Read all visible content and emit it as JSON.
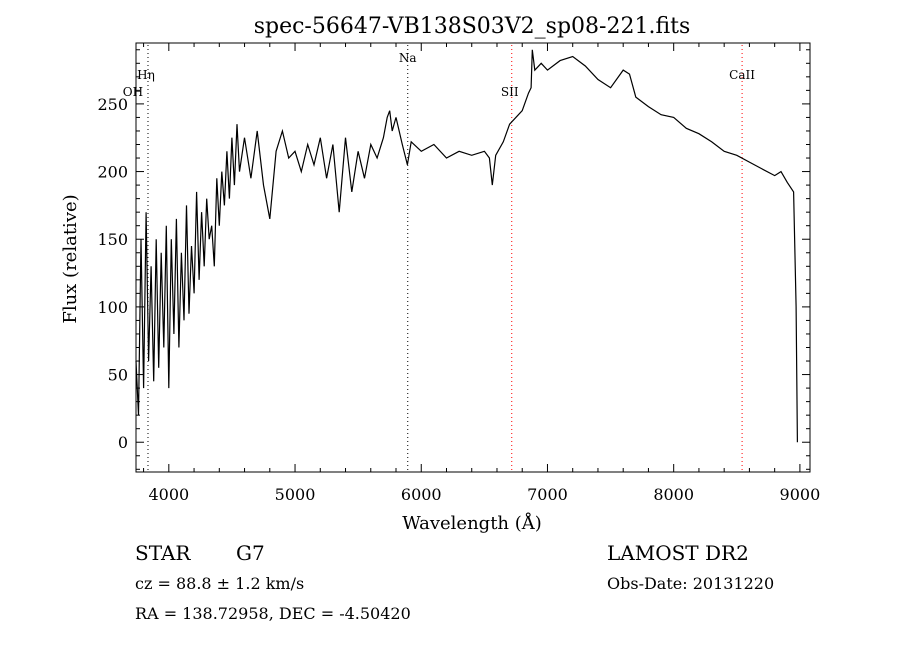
{
  "chart_data": {
    "type": "line",
    "title": "spec-56647-VB138S03V2_sp08-221.fits",
    "xlabel": "Wavelength (Å)",
    "ylabel": "Flux (relative)",
    "xlim": [
      3740,
      9080
    ],
    "ylim": [
      -22,
      295
    ],
    "xticks": [
      4000,
      5000,
      6000,
      7000,
      8000,
      9000
    ],
    "yticks": [
      0,
      50,
      100,
      150,
      200,
      250
    ],
    "grid": false,
    "line_color": "#000000",
    "marker_color": "#ff0000",
    "series": [
      {
        "values": [
          [
            3740,
            60
          ],
          [
            3760,
            20
          ],
          [
            3780,
            150
          ],
          [
            3800,
            40
          ],
          [
            3820,
            170
          ],
          [
            3840,
            60
          ],
          [
            3860,
            130
          ],
          [
            3880,
            45
          ],
          [
            3900,
            150
          ],
          [
            3920,
            55
          ],
          [
            3940,
            140
          ],
          [
            3960,
            70
          ],
          [
            3980,
            160
          ],
          [
            4000,
            40
          ],
          [
            4020,
            150
          ],
          [
            4040,
            80
          ],
          [
            4060,
            165
          ],
          [
            4080,
            70
          ],
          [
            4100,
            140
          ],
          [
            4120,
            90
          ],
          [
            4140,
            175
          ],
          [
            4160,
            95
          ],
          [
            4180,
            145
          ],
          [
            4200,
            110
          ],
          [
            4220,
            185
          ],
          [
            4240,
            120
          ],
          [
            4260,
            170
          ],
          [
            4280,
            130
          ],
          [
            4300,
            180
          ],
          [
            4320,
            150
          ],
          [
            4340,
            160
          ],
          [
            4360,
            130
          ],
          [
            4380,
            195
          ],
          [
            4400,
            160
          ],
          [
            4420,
            200
          ],
          [
            4440,
            175
          ],
          [
            4460,
            215
          ],
          [
            4480,
            180
          ],
          [
            4500,
            225
          ],
          [
            4520,
            190
          ],
          [
            4540,
            235
          ],
          [
            4560,
            200
          ],
          [
            4600,
            225
          ],
          [
            4650,
            195
          ],
          [
            4700,
            230
          ],
          [
            4750,
            190
          ],
          [
            4800,
            165
          ],
          [
            4850,
            215
          ],
          [
            4900,
            230
          ],
          [
            4950,
            210
          ],
          [
            5000,
            215
          ],
          [
            5050,
            200
          ],
          [
            5100,
            220
          ],
          [
            5150,
            205
          ],
          [
            5200,
            225
          ],
          [
            5250,
            195
          ],
          [
            5300,
            220
          ],
          [
            5350,
            170
          ],
          [
            5400,
            225
          ],
          [
            5450,
            185
          ],
          [
            5500,
            215
          ],
          [
            5550,
            195
          ],
          [
            5600,
            220
          ],
          [
            5650,
            210
          ],
          [
            5700,
            225
          ],
          [
            5730,
            240
          ],
          [
            5750,
            245
          ],
          [
            5770,
            230
          ],
          [
            5800,
            240
          ],
          [
            5850,
            220
          ],
          [
            5890,
            205
          ],
          [
            5920,
            222
          ],
          [
            6000,
            215
          ],
          [
            6100,
            220
          ],
          [
            6200,
            210
          ],
          [
            6300,
            215
          ],
          [
            6400,
            212
          ],
          [
            6500,
            215
          ],
          [
            6540,
            210
          ],
          [
            6563,
            190
          ],
          [
            6590,
            212
          ],
          [
            6650,
            222
          ],
          [
            6700,
            235
          ],
          [
            6800,
            245
          ],
          [
            6850,
            258
          ],
          [
            6870,
            262
          ],
          [
            6880,
            290
          ],
          [
            6900,
            275
          ],
          [
            6950,
            280
          ],
          [
            7000,
            275
          ],
          [
            7100,
            282
          ],
          [
            7200,
            285
          ],
          [
            7300,
            278
          ],
          [
            7400,
            268
          ],
          [
            7500,
            262
          ],
          [
            7600,
            275
          ],
          [
            7650,
            272
          ],
          [
            7700,
            255
          ],
          [
            7800,
            248
          ],
          [
            7900,
            242
          ],
          [
            8000,
            240
          ],
          [
            8100,
            232
          ],
          [
            8200,
            228
          ],
          [
            8300,
            222
          ],
          [
            8400,
            215
          ],
          [
            8500,
            212
          ],
          [
            8600,
            207
          ],
          [
            8700,
            202
          ],
          [
            8800,
            197
          ],
          [
            8850,
            200
          ],
          [
            8900,
            192
          ],
          [
            8950,
            185
          ],
          [
            8970,
            100
          ],
          [
            8980,
            0
          ]
        ]
      }
    ],
    "lines": [
      {
        "label": "Hη",
        "x": 3835,
        "color": "#000000"
      },
      {
        "label": "OH",
        "x": 3820,
        "color": "#000000"
      },
      {
        "label": "Na",
        "x": 5893,
        "color": "#000000"
      },
      {
        "label": "SII",
        "x": 6717,
        "color": "#ff0000"
      },
      {
        "label": "CaII",
        "x": 8542,
        "color": "#ff0000"
      }
    ]
  },
  "info": {
    "object_type": "STAR",
    "subclass": "G7",
    "survey": "LAMOST DR2",
    "cz": "cz = 88.8 ± 1.2 km/s",
    "obs_date": "Obs-Date: 20131220",
    "radec": "RA = 138.72958, DEC =  -4.50420"
  }
}
